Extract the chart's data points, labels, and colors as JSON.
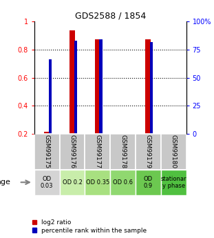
{
  "title": "GDS2588 / 1854",
  "samples": [
    "GSM99175",
    "GSM99176",
    "GSM99177",
    "GSM99178",
    "GSM99179",
    "GSM99180"
  ],
  "log2_ratio": [
    0.215,
    0.935,
    0.875,
    0.0,
    0.875,
    0.0
  ],
  "percentile_rank": [
    0.73,
    0.865,
    0.875,
    0.0,
    0.855,
    0.0
  ],
  "ylim_left": [
    0.2,
    1.0
  ],
  "yticks_left": [
    0.2,
    0.4,
    0.6,
    0.8,
    1.0
  ],
  "ytick_labels_left": [
    "0.2",
    "0.4",
    "0.6",
    "0.8",
    "1"
  ],
  "yticks_right": [
    0,
    25,
    50,
    75,
    100
  ],
  "ytick_labels_right": [
    "0",
    "25",
    "50",
    "75",
    "100%"
  ],
  "grid_lines": [
    0.4,
    0.6,
    0.8
  ],
  "age_labels": [
    "OD\n0.03",
    "OD 0.2",
    "OD 0.35",
    "OD 0.6",
    "OD\n0.9",
    "stationar\ny phase"
  ],
  "age_colors": [
    "#d4d4d4",
    "#c8edaa",
    "#a8e080",
    "#90d870",
    "#6cc850",
    "#50c040"
  ],
  "sample_bg_color": "#c8c8c8",
  "bar_color_red": "#cc0000",
  "bar_color_blue": "#0000bb",
  "legend_red": "log2 ratio",
  "legend_blue": "percentile rank within the sample",
  "age_label": "age",
  "title_fontsize": 9,
  "tick_fontsize": 7,
  "sample_fontsize": 6.5,
  "age_fontsize": 6,
  "legend_fontsize": 6.5
}
